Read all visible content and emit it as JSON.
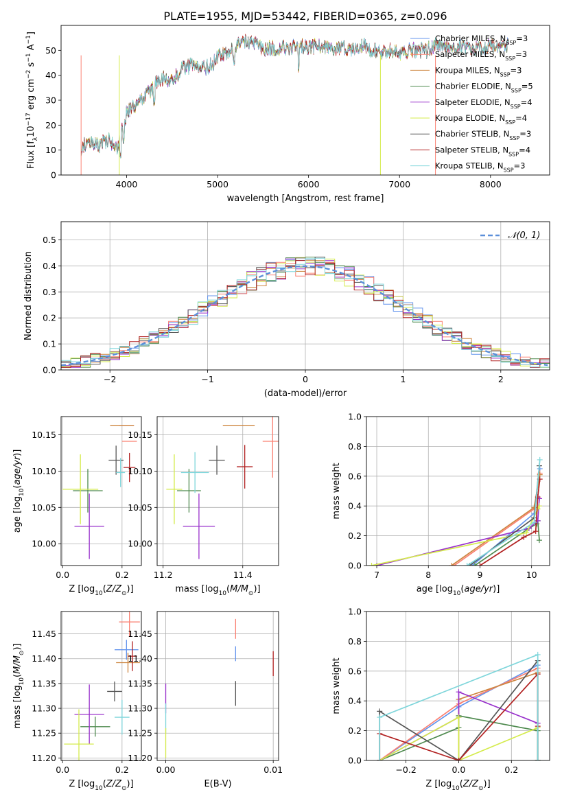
{
  "figure_title": "PLATE=1955, MJD=53442, FIBERID=0365, z=0.096",
  "colors": {
    "Chabrier MILES": "#6495ED",
    "Salpeter MILES": "#FA8072",
    "Kroupa MILES": "#CD853F",
    "Chabrier ELODIE": "#4E8A4E",
    "Salpeter ELODIE": "#9932CC",
    "Kroupa ELODIE": "#D4EB4B",
    "Chabrier STELIB": "#555555",
    "Salpeter STELIB": "#B22222",
    "Kroupa STELIB": "#7FD6DB"
  },
  "legend": [
    {
      "name": "Chabrier MILES",
      "nssp": "3"
    },
    {
      "name": "Salpeter MILES",
      "nssp": "3"
    },
    {
      "name": "Kroupa MILES",
      "nssp": "3"
    },
    {
      "name": "Chabrier ELODIE",
      "nssp": "5"
    },
    {
      "name": "Salpeter ELODIE",
      "nssp": "4"
    },
    {
      "name": "Kroupa ELODIE",
      "nssp": "4"
    },
    {
      "name": "Chabrier STELIB",
      "nssp": "3"
    },
    {
      "name": "Salpeter STELIB",
      "nssp": "4"
    },
    {
      "name": "Kroupa STELIB",
      "nssp": "3"
    }
  ],
  "chart_data": [
    {
      "id": "spectrum",
      "type": "line",
      "xlabel": "wavelength [Angstrom, rest frame]",
      "ylabel": "Flux [f_λ 10^-17 erg cm^-2 s^-1 A^-1]",
      "xlim": [
        3280,
        8650
      ],
      "ylim": [
        0,
        60
      ],
      "xticks": [
        "4000",
        "5000",
        "6000",
        "7000",
        "8000"
      ],
      "yticks": [
        "0",
        "10",
        "20",
        "30",
        "40",
        "50"
      ],
      "x": [
        3500,
        3600,
        3700,
        3800,
        3900,
        4000,
        4100,
        4200,
        4300,
        4400,
        4500,
        4600,
        4700,
        4800,
        4900,
        5000,
        5100,
        5200,
        5300,
        5400,
        5500,
        5600,
        5700,
        5800,
        5900,
        6000,
        6100,
        6200,
        6300,
        6400,
        6500,
        6600,
        6700,
        6800,
        6900,
        7000,
        7100,
        7200,
        7300,
        7400,
        7500,
        7600,
        7700,
        7800,
        7900,
        8000,
        8100,
        8200
      ],
      "y": [
        11,
        14,
        12,
        14,
        10,
        25,
        28,
        31,
        36,
        39,
        38,
        42,
        44,
        44,
        43,
        47,
        49,
        52,
        53,
        53,
        51,
        51,
        51,
        51,
        52,
        51,
        52,
        51,
        51,
        51,
        50,
        52,
        50,
        49,
        50,
        49,
        50,
        50,
        50,
        52,
        52,
        52,
        51,
        50,
        51,
        52,
        51,
        52
      ],
      "grid": false,
      "legend_position": "upper-right"
    },
    {
      "id": "residual-histogram",
      "type": "line",
      "xlabel": "(data-model)/error",
      "ylabel": "Normed distribution",
      "xlim": [
        -2.5,
        2.5
      ],
      "ylim": [
        0,
        0.57
      ],
      "xticks": [
        "−2",
        "−1",
        "0",
        "1",
        "2"
      ],
      "yticks": [
        "0.0",
        "0.1",
        "0.2",
        "0.3",
        "0.4",
        "0.5"
      ],
      "normal_curve_label": "𝒩(0, 1)",
      "bin_width": 0.1,
      "grid": true,
      "legend_position": "upper-right"
    },
    {
      "id": "age-vs-Z",
      "type": "scatter",
      "xlabel": "Z [log10(Z/Z⊙)]",
      "ylabel": "age [log10(age/yr)]",
      "xlim": [
        -0.005,
        0.265
      ],
      "ylim": [
        9.97,
        10.175
      ],
      "xticks": [
        "0.0",
        "0.2"
      ],
      "yticks": [
        "10.00",
        "10.05",
        "10.10",
        "10.15"
      ],
      "points": [
        {
          "series": "Chabrier MILES",
          "x": 0.215,
          "y": 10.163,
          "xerr": 0.025,
          "yerr": 0.0
        },
        {
          "series": "Salpeter MILES",
          "x": 0.215,
          "y": 10.163,
          "xerr": 0.025,
          "yerr": 0.0
        },
        {
          "series": "Kroupa MILES",
          "x": 0.2,
          "y": 10.163,
          "xerr": 0.04,
          "yerr": 0.0
        },
        {
          "series": "Chabrier ELODIE",
          "x": 0.085,
          "y": 10.073,
          "xerr": 0.05,
          "yerr": 0.03
        },
        {
          "series": "Salpeter ELODIE",
          "x": 0.09,
          "y": 10.024,
          "xerr": 0.05,
          "yerr": 0.045
        },
        {
          "series": "Kroupa ELODIE",
          "x": 0.06,
          "y": 10.075,
          "xerr": 0.06,
          "yerr": 0.048
        },
        {
          "series": "Chabrier STELIB",
          "x": 0.18,
          "y": 10.115,
          "xerr": 0.025,
          "yerr": 0.02
        },
        {
          "series": "Salpeter STELIB",
          "x": 0.225,
          "y": 10.105,
          "xerr": 0.02,
          "yerr": 0.02
        },
        {
          "series": "Kroupa STELIB",
          "x": 0.195,
          "y": 10.098,
          "xerr": 0.015,
          "yerr": 0.02
        },
        {
          "series": "Salpeter MILES",
          "x": 0.225,
          "y": 10.141,
          "xerr": 0.025,
          "yerr": 0.0
        }
      ]
    },
    {
      "id": "age-vs-mass",
      "type": "scatter",
      "xlabel": "mass [log10(M/M⊙)]",
      "ylabel": "",
      "xlim": [
        11.185,
        11.49
      ],
      "ylim": [
        9.97,
        10.175
      ],
      "xticks": [
        "11.2",
        "11.4"
      ],
      "yticks": [
        "10.00",
        "10.05",
        "10.10",
        "10.15"
      ],
      "points": [
        {
          "series": "Chabrier MILES",
          "x": 11.42,
          "y": 10.163,
          "xerr": 0.0,
          "yerr": 0.0
        },
        {
          "series": "Salpeter MILES",
          "x": 11.475,
          "y": 10.141,
          "xerr": 0.025,
          "yerr": 0.05
        },
        {
          "series": "Kroupa MILES",
          "x": 11.39,
          "y": 10.163,
          "xerr": 0.04,
          "yerr": 0.0
        },
        {
          "series": "Chabrier ELODIE",
          "x": 11.265,
          "y": 10.073,
          "xerr": 0.03,
          "yerr": 0.03
        },
        {
          "series": "Salpeter ELODIE",
          "x": 11.29,
          "y": 10.024,
          "xerr": 0.04,
          "yerr": 0.045
        },
        {
          "series": "Kroupa ELODIE",
          "x": 11.228,
          "y": 10.075,
          "xerr": 0.02,
          "yerr": 0.048
        },
        {
          "series": "Chabrier STELIB",
          "x": 11.335,
          "y": 10.115,
          "xerr": 0.02,
          "yerr": 0.02
        },
        {
          "series": "Salpeter STELIB",
          "x": 11.405,
          "y": 10.106,
          "xerr": 0.02,
          "yerr": 0.03
        },
        {
          "series": "Kroupa STELIB",
          "x": 11.28,
          "y": 10.098,
          "xerr": 0.035,
          "yerr": 0.028
        }
      ]
    },
    {
      "id": "weight-vs-age",
      "type": "line",
      "xlabel": "age [log10(age/yr)]",
      "ylabel": "mass weight",
      "xlim": [
        6.8,
        10.35
      ],
      "ylim": [
        0,
        1
      ],
      "xticks": [
        "7",
        "8",
        "9",
        "10"
      ],
      "yticks": [
        "0.0",
        "0.2",
        "0.4",
        "0.6",
        "0.8",
        "1.0"
      ],
      "grid": true,
      "series": [
        {
          "name": "Chabrier MILES",
          "x": [
            8.85,
            10.05,
            10.16
          ],
          "y": [
            0.0,
            0.35,
            0.65
          ]
        },
        {
          "name": "Salpeter MILES",
          "x": [
            8.5,
            10.05,
            10.16
          ],
          "y": [
            0.0,
            0.38,
            0.62
          ]
        },
        {
          "name": "Kroupa MILES",
          "x": [
            8.45,
            10.05,
            10.16
          ],
          "y": [
            0.0,
            0.39,
            0.61
          ]
        },
        {
          "name": "Chabrier ELODIE",
          "x": [
            8.9,
            9.95,
            10.1,
            10.12,
            10.15
          ],
          "y": [
            0.0,
            0.25,
            0.28,
            0.3,
            0.17
          ]
        },
        {
          "name": "Salpeter ELODIE",
          "x": [
            7.0,
            9.95,
            10.12,
            10.15
          ],
          "y": [
            0.0,
            0.25,
            0.3,
            0.45
          ]
        },
        {
          "name": "Kroupa ELODIE",
          "x": [
            6.9,
            9.9,
            10.12,
            10.15
          ],
          "y": [
            0.0,
            0.22,
            0.38,
            0.4
          ]
        },
        {
          "name": "Chabrier STELIB",
          "x": [
            8.8,
            10.05,
            10.15
          ],
          "y": [
            0.0,
            0.32,
            0.67
          ]
        },
        {
          "name": "Salpeter STELIB",
          "x": [
            9.0,
            9.85,
            10.08,
            10.12,
            10.16
          ],
          "y": [
            0.0,
            0.19,
            0.23,
            0.46,
            0.58
          ]
        },
        {
          "name": "Kroupa STELIB",
          "x": [
            8.75,
            10.05,
            10.16
          ],
          "y": [
            0.0,
            0.29,
            0.71
          ]
        }
      ]
    },
    {
      "id": "mass-vs-Z",
      "type": "scatter",
      "xlabel": "Z [log10(Z/Z⊙)]",
      "ylabel": "mass [log10(M/M⊙)]",
      "xlim": [
        -0.005,
        0.265
      ],
      "ylim": [
        11.195,
        11.495
      ],
      "xticks": [
        "0.0",
        "0.2"
      ],
      "yticks": [
        "11.20",
        "11.25",
        "11.30",
        "11.35",
        "11.40",
        "11.45"
      ],
      "points": [
        {
          "series": "Chabrier MILES",
          "x": 0.215,
          "y": 11.418,
          "xerr": 0.04,
          "yerr": 0.02
        },
        {
          "series": "Salpeter MILES",
          "x": 0.225,
          "y": 11.474,
          "xerr": 0.035,
          "yerr": 0.03
        },
        {
          "series": "Kroupa MILES",
          "x": 0.22,
          "y": 11.392,
          "xerr": 0.04,
          "yerr": 0.02
        },
        {
          "series": "Chabrier ELODIE",
          "x": 0.11,
          "y": 11.263,
          "xerr": 0.05,
          "yerr": 0.02
        },
        {
          "series": "Salpeter ELODIE",
          "x": 0.09,
          "y": 11.288,
          "xerr": 0.05,
          "yerr": 0.06
        },
        {
          "series": "Kroupa ELODIE",
          "x": 0.055,
          "y": 11.228,
          "xerr": 0.05,
          "yerr": 0.07
        },
        {
          "series": "Chabrier STELIB",
          "x": 0.175,
          "y": 11.334,
          "xerr": 0.025,
          "yerr": 0.02
        },
        {
          "series": "Salpeter STELIB",
          "x": 0.235,
          "y": 11.405,
          "xerr": 0.015,
          "yerr": 0.03
        },
        {
          "series": "Kroupa STELIB",
          "x": 0.2,
          "y": 11.282,
          "xerr": 0.025,
          "yerr": 0.035
        }
      ]
    },
    {
      "id": "mass-vs-EBV",
      "type": "scatter",
      "xlabel": "E(B-V)",
      "ylabel": "",
      "xlim": [
        -0.0008,
        0.0105
      ],
      "ylim": [
        11.195,
        11.495
      ],
      "xticks": [
        "0.00",
        "0.01"
      ],
      "yticks": [
        "11.20",
        "11.25",
        "11.30",
        "11.35",
        "11.40",
        "11.45"
      ],
      "points": [
        {
          "series": "Salpeter ELODIE",
          "x": 0.0,
          "y": 11.32,
          "xerr": 0.0,
          "yerr": 0.03
        },
        {
          "series": "Kroupa STELIB",
          "x": 0.0,
          "y": 11.28,
          "xerr": 0.0,
          "yerr": 0.03
        },
        {
          "series": "Kroupa ELODIE",
          "x": 0.0,
          "y": 11.23,
          "xerr": 0.0,
          "yerr": 0.03
        },
        {
          "series": "Chabrier STELIB",
          "x": 0.0065,
          "y": 11.33,
          "xerr": 0.0,
          "yerr": 0.025
        },
        {
          "series": "Salpeter MILES",
          "x": 0.0065,
          "y": 11.46,
          "xerr": 0.0,
          "yerr": 0.02
        },
        {
          "series": "Chabrier MILES",
          "x": 0.0065,
          "y": 11.41,
          "xerr": 0.0,
          "yerr": 0.015
        },
        {
          "series": "Salpeter STELIB",
          "x": 0.01,
          "y": 11.39,
          "xerr": 0.0,
          "yerr": 0.025
        }
      ]
    },
    {
      "id": "weight-vs-Z",
      "type": "line",
      "xlabel": "Z [log10(Z/Z⊙)]",
      "ylabel": "mass weight",
      "xlim": [
        -0.35,
        0.345
      ],
      "ylim": [
        0,
        1
      ],
      "xticks": [
        "−0.2",
        "0.0",
        "0.2"
      ],
      "yticks": [
        "0.0",
        "0.2",
        "0.4",
        "0.6",
        "0.8",
        "1.0"
      ],
      "grid": true,
      "series": [
        {
          "name": "Chabrier MILES",
          "x": [
            -0.3,
            0.0,
            0.3,
            0.3
          ],
          "y": [
            0.0,
            0.36,
            0.64,
            0.0
          ]
        },
        {
          "name": "Salpeter MILES",
          "x": [
            -0.3,
            0.0,
            0.3,
            0.3
          ],
          "y": [
            0.0,
            0.38,
            0.62,
            0.0
          ]
        },
        {
          "name": "Kroupa MILES",
          "x": [
            0.0,
            0.0,
            0.3,
            0.3
          ],
          "y": [
            0.0,
            0.41,
            0.59,
            0.0
          ]
        },
        {
          "name": "Chabrier ELODIE",
          "x": [
            -0.3,
            0.0,
            0.0,
            0.3,
            0.3
          ],
          "y": [
            0.0,
            0.22,
            0.3,
            0.2,
            0.0
          ]
        },
        {
          "name": "Salpeter ELODIE",
          "x": [
            -0.3,
            0.0,
            0.0,
            0.3,
            0.3
          ],
          "y": [
            0.0,
            0.29,
            0.46,
            0.25,
            0.0
          ]
        },
        {
          "name": "Kroupa ELODIE",
          "x": [
            -0.3,
            0.0,
            0.0,
            0.3,
            0.3
          ],
          "y": [
            0.0,
            0.29,
            0.0,
            0.22,
            0.0
          ]
        },
        {
          "name": "Chabrier STELIB",
          "x": [
            -0.3,
            -0.3,
            0.0,
            0.3,
            0.3
          ],
          "y": [
            0.0,
            0.33,
            0.0,
            0.67,
            0.0
          ]
        },
        {
          "name": "Salpeter STELIB",
          "x": [
            -0.3,
            -0.3,
            0.0,
            0.3,
            0.3
          ],
          "y": [
            0.0,
            0.18,
            0.0,
            0.58,
            0.23
          ]
        },
        {
          "name": "Kroupa STELIB",
          "x": [
            -0.3,
            -0.3,
            0.3,
            0.3
          ],
          "y": [
            0.0,
            0.29,
            0.71,
            0.0
          ]
        }
      ]
    }
  ]
}
